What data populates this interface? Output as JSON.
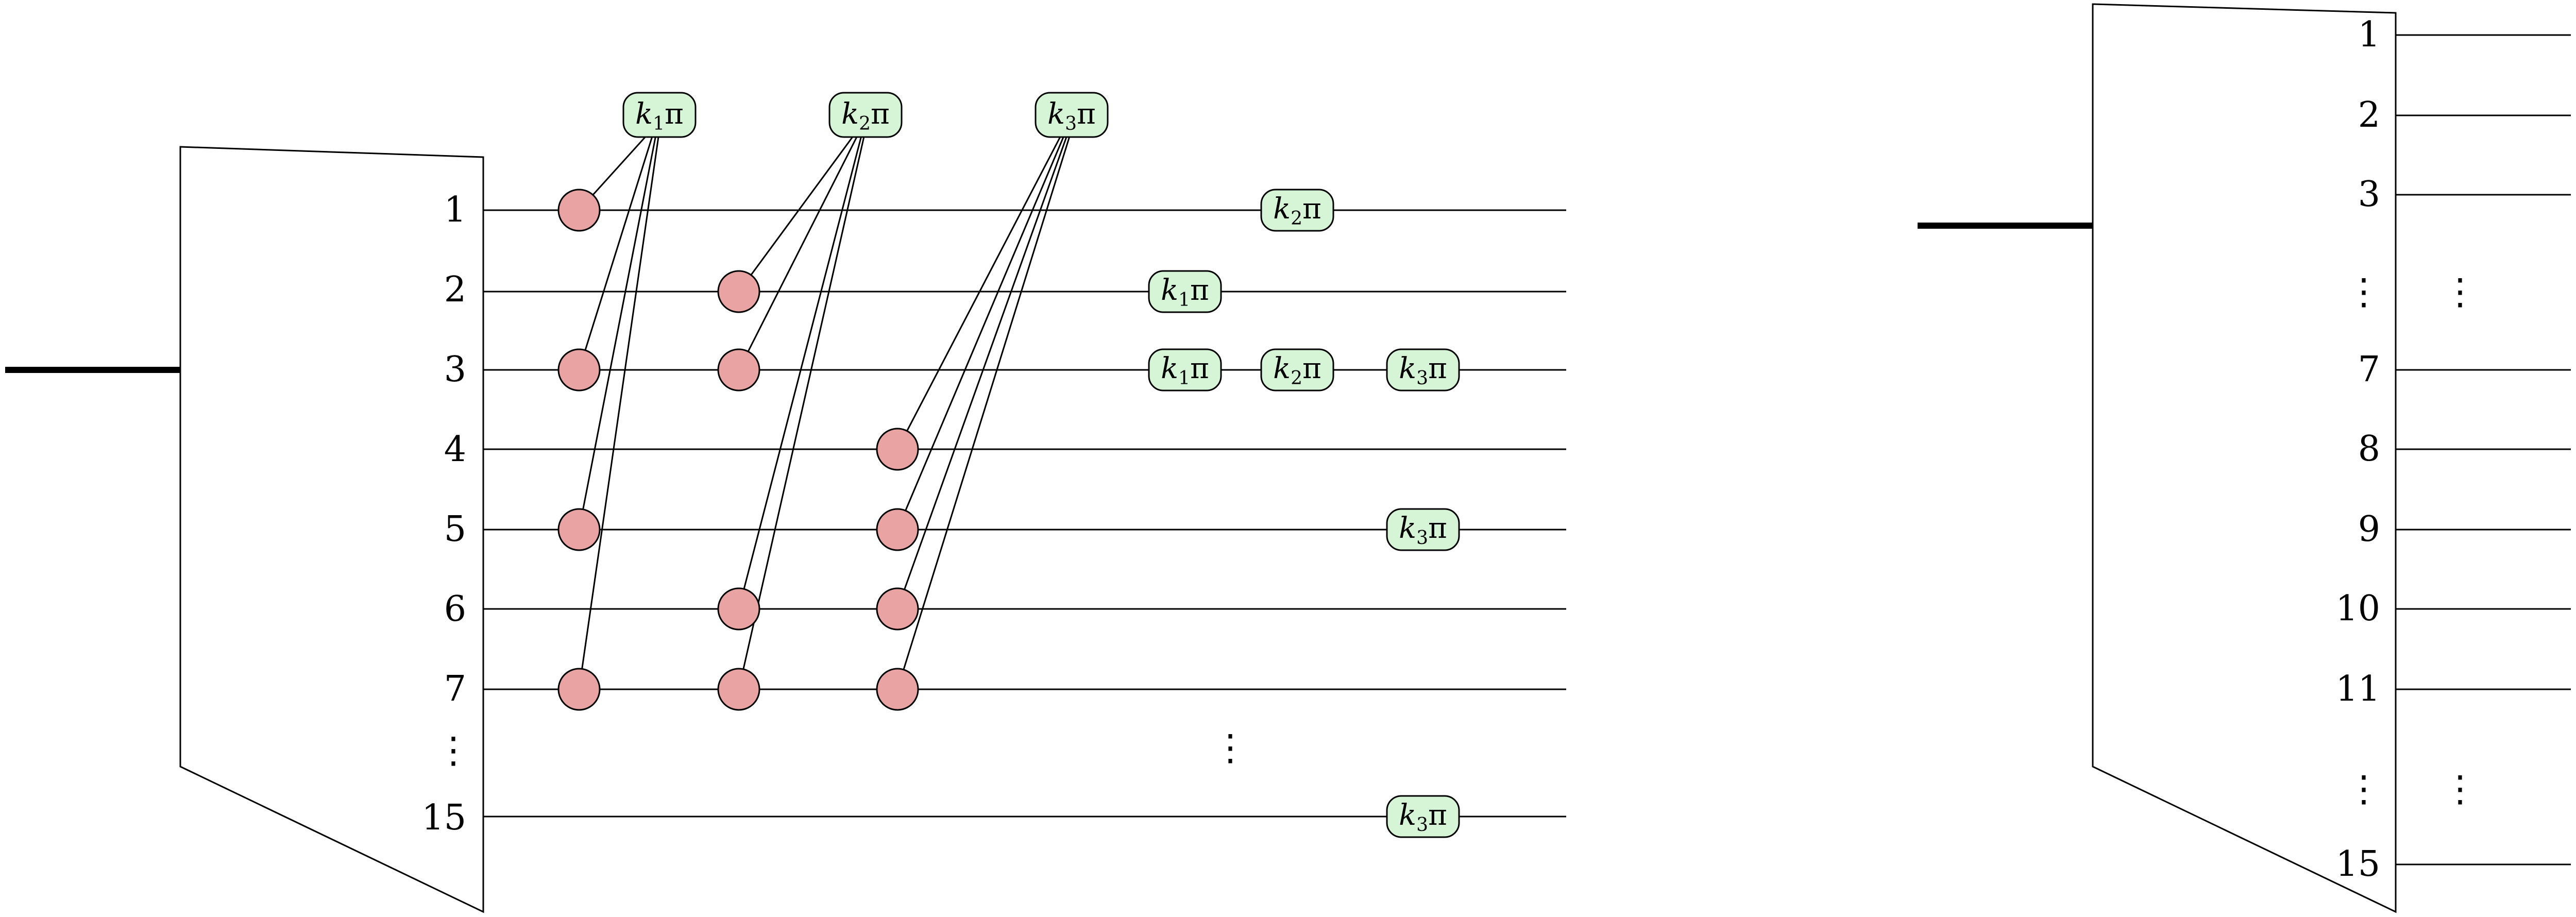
{
  "colors": {
    "node_fill": "#e9a3a3",
    "phase_fill": "#d6f5d6",
    "stroke": "#000000"
  },
  "left_block": {
    "port_labels": [
      "1",
      "2",
      "3",
      "4",
      "5",
      "6",
      "7",
      "⋮",
      "15"
    ],
    "gap_dots": "⋮",
    "phases": [
      {
        "k": "k",
        "sub": "1",
        "pi": "π"
      },
      {
        "k": "k",
        "sub": "2",
        "pi": "π"
      },
      {
        "k": "k",
        "sub": "3",
        "pi": "π"
      }
    ],
    "wire_phases": [
      {
        "k": "k",
        "sub": "2",
        "pi": "π"
      },
      {
        "k": "k",
        "sub": "1",
        "pi": "π"
      },
      {
        "k": "k",
        "sub": "1",
        "pi": "π"
      },
      {
        "k": "k",
        "sub": "2",
        "pi": "π"
      },
      {
        "k": "k",
        "sub": "3",
        "pi": "π"
      },
      {
        "k": "k",
        "sub": "3",
        "pi": "π"
      },
      {
        "k": "k",
        "sub": "3",
        "pi": "π"
      }
    ]
  },
  "right_block": {
    "port_labels": [
      "1",
      "2",
      "3",
      "⋮",
      "7",
      "8",
      "9",
      "10",
      "11",
      "⋮",
      "15"
    ],
    "side_dots": [
      "⋮",
      "⋮"
    ]
  }
}
